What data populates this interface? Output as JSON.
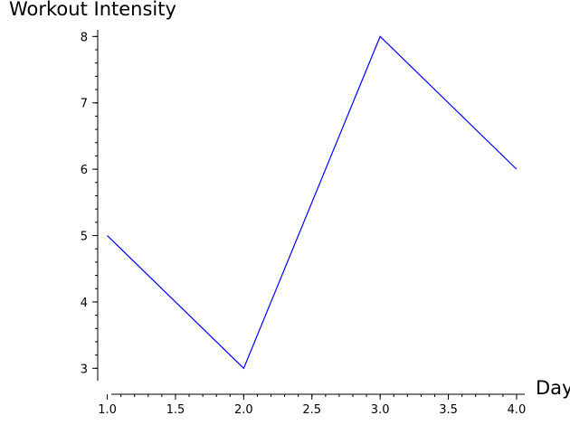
{
  "chart_data": {
    "type": "line",
    "title": "",
    "xlabel": "Day",
    "ylabel": "Workout Intensity",
    "x": [
      1,
      2,
      3,
      4
    ],
    "series": [
      {
        "values": [
          5,
          3,
          8,
          6
        ],
        "color": "#0000ff"
      }
    ],
    "xlim": [
      0.93,
      4.06
    ],
    "ylim": [
      2.8,
      8.1
    ],
    "xticks": [
      1.0,
      1.5,
      2.0,
      2.5,
      3.0,
      3.5,
      4.0
    ],
    "xtick_labels": [
      "1.0",
      "1.5",
      "2.0",
      "2.5",
      "3.0",
      "3.5",
      "4.0"
    ],
    "yticks": [
      3,
      4,
      5,
      6,
      7,
      8
    ],
    "ytick_labels": [
      "3",
      "4",
      "5",
      "6",
      "7",
      "8"
    ],
    "x_minor_step": 0.1,
    "y_minor_step": 0.2,
    "grid": false,
    "legend": "none"
  }
}
